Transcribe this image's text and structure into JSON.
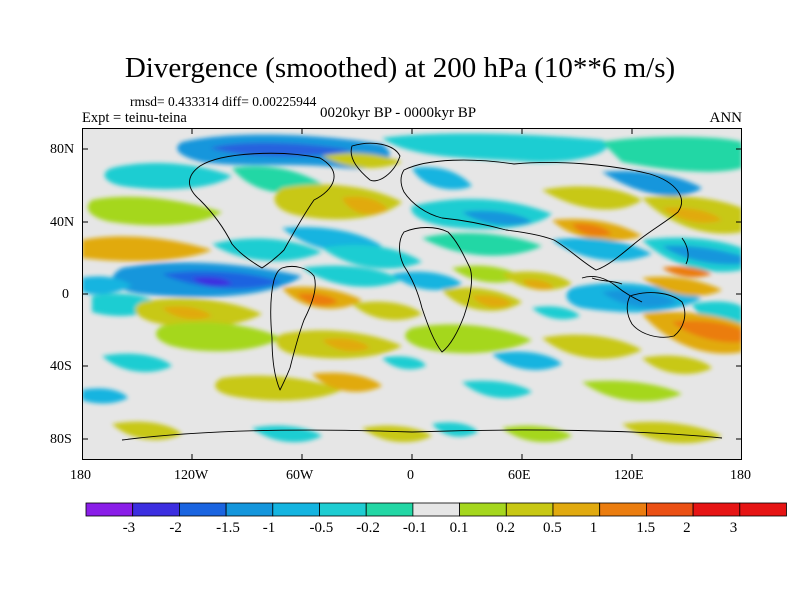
{
  "title": "Divergence (smoothed) at 200 hPa (10**6 m/s)",
  "stats": "rmsd= 0.433314  diff= 0.00225944",
  "experiment": "Expt = teinu-teina",
  "period": "0020kyr BP - 0000kyr BP",
  "season": "ANN",
  "map": {
    "projection": "cylindrical equidistant, global",
    "lat_ticks": [
      "80N",
      "40N",
      "0",
      "40S",
      "80S"
    ],
    "lon_ticks": [
      "180",
      "120W",
      "60W",
      "0",
      "60E",
      "120E",
      "180"
    ]
  },
  "legend": {
    "labels": [
      "-3",
      "-2",
      "-1.5",
      "-1",
      "-0.5",
      "-0.2",
      "-0.1",
      "0.1",
      "0.2",
      "0.5",
      "1",
      "1.5",
      "2",
      "3"
    ],
    "colors": [
      "#8a1ee8",
      "#3c2ee0",
      "#1a64e0",
      "#1496dc",
      "#14b4e0",
      "#1ecdd2",
      "#23d7a5",
      "#e6e6e6",
      "#a5d71e",
      "#c8c814",
      "#e1aa0f",
      "#eb7d0f",
      "#eb5014",
      "#e61414"
    ]
  }
}
